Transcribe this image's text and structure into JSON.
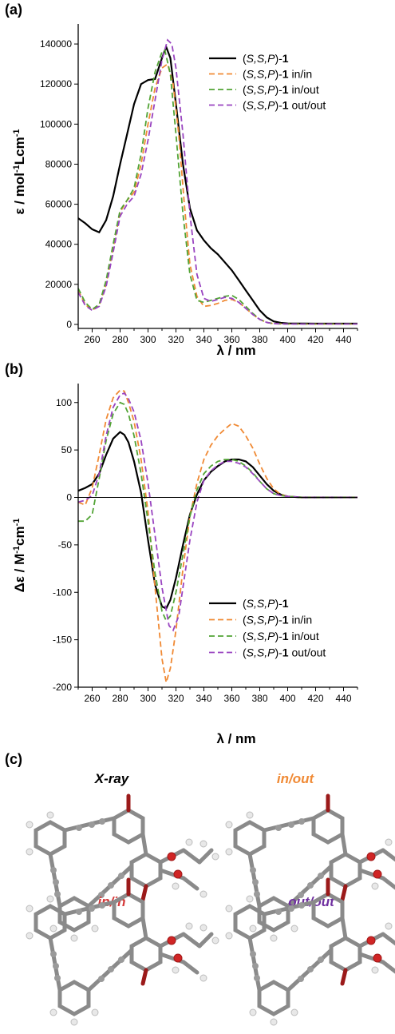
{
  "panels": {
    "a": "(a)",
    "b": "(b)",
    "c": "(c)"
  },
  "colors": {
    "exp": "#000000",
    "in_in": "#f08a35",
    "in_out": "#52a435",
    "out_out": "#9944c0",
    "xray_caption": "#000000",
    "in_out_caption": "#f08a35",
    "in_in_caption": "#d53a3a",
    "out_out_caption": "#7030a0"
  },
  "chart_data": [
    {
      "type": "line",
      "ylabel_symbol": "ε",
      "ylabel_unit": " / mol",
      "ylabel_sup1": "-1",
      "ylabel_mid": "Lcm",
      "ylabel_sup2": "-1",
      "xlabel": "λ / nm",
      "xlim": [
        250,
        450
      ],
      "ylim": [
        -2000,
        150000
      ],
      "xticks": [
        260,
        280,
        300,
        320,
        340,
        360,
        380,
        400,
        420,
        440
      ],
      "yticks": [
        0,
        20000,
        40000,
        60000,
        80000,
        100000,
        120000,
        140000
      ],
      "legend_position": "top-right",
      "series": [
        {
          "name_pre": "(",
          "name_italic": "S,S,P",
          "name_post": ")-",
          "name_bold": "1",
          "name_suffix": "",
          "style": "solid",
          "color_key": "exp",
          "x": [
            250,
            255,
            260,
            265,
            270,
            275,
            280,
            285,
            290,
            295,
            300,
            305,
            310,
            313,
            316,
            320,
            325,
            330,
            335,
            340,
            345,
            350,
            355,
            360,
            365,
            370,
            375,
            380,
            385,
            390,
            395,
            400,
            420,
            450
          ],
          "y": [
            53000,
            50500,
            47500,
            46000,
            52000,
            64000,
            80000,
            95000,
            110000,
            120000,
            122000,
            122500,
            133000,
            138500,
            133000,
            110000,
            80000,
            58000,
            47000,
            42000,
            38000,
            35000,
            31000,
            27000,
            22000,
            17000,
            12000,
            7000,
            3500,
            1500,
            800,
            500,
            400,
            400
          ]
        },
        {
          "name_pre": "(",
          "name_italic": "S,S,P",
          "name_post": ")-",
          "name_bold": "1",
          "name_suffix": " in/in",
          "style": "dashed",
          "color_key": "in_in",
          "x": [
            250,
            255,
            260,
            265,
            270,
            275,
            280,
            285,
            290,
            295,
            300,
            305,
            310,
            314,
            318,
            322,
            326,
            330,
            335,
            340,
            345,
            350,
            355,
            360,
            365,
            370,
            375,
            380,
            385,
            390,
            400,
            420,
            450
          ],
          "y": [
            17000,
            10000,
            7000,
            9500,
            20000,
            38000,
            56000,
            62000,
            66000,
            80000,
            100000,
            118000,
            128000,
            130000,
            120000,
            95000,
            60000,
            30000,
            14000,
            9000,
            9500,
            10500,
            12000,
            12500,
            11000,
            8000,
            5000,
            2500,
            1000,
            400,
            200,
            200,
            200
          ]
        },
        {
          "name_pre": "(",
          "name_italic": "S,S,P",
          "name_post": ")-",
          "name_bold": "1",
          "name_suffix": " in/out",
          "style": "dashed",
          "color_key": "in_out",
          "x": [
            250,
            255,
            260,
            265,
            270,
            275,
            280,
            285,
            290,
            295,
            300,
            305,
            310,
            312,
            316,
            320,
            325,
            330,
            335,
            340,
            345,
            350,
            355,
            360,
            365,
            370,
            375,
            380,
            385,
            390,
            400,
            420,
            450
          ],
          "y": [
            18000,
            11000,
            7500,
            10000,
            22000,
            40000,
            57000,
            62000,
            68000,
            85000,
            108000,
            126000,
            136000,
            137000,
            125000,
            95000,
            55000,
            25000,
            12000,
            11000,
            12000,
            13000,
            14000,
            14500,
            12500,
            9000,
            5500,
            2500,
            1000,
            400,
            200,
            200,
            200
          ]
        },
        {
          "name_pre": "(",
          "name_italic": "S,S,P",
          "name_post": ")-",
          "name_bold": "1",
          "name_suffix": " out/out",
          "style": "dashed",
          "color_key": "out_out",
          "x": [
            250,
            255,
            260,
            265,
            270,
            275,
            280,
            285,
            290,
            295,
            300,
            305,
            310,
            314,
            317,
            320,
            325,
            330,
            335,
            340,
            345,
            350,
            355,
            360,
            365,
            370,
            375,
            380,
            385,
            390,
            400,
            420,
            450
          ],
          "y": [
            16000,
            9500,
            7000,
            9000,
            19000,
            36000,
            54000,
            60000,
            64000,
            75000,
            92000,
            112000,
            132000,
            142000,
            140000,
            128000,
            95000,
            55000,
            25000,
            13000,
            11500,
            12500,
            13500,
            13000,
            11000,
            8000,
            5000,
            2500,
            1000,
            400,
            200,
            200,
            200
          ]
        }
      ]
    },
    {
      "type": "line",
      "ylabel_symbol": "Δε",
      "ylabel_unit": " / M",
      "ylabel_sup1": "-1",
      "ylabel_mid": "cm",
      "ylabel_sup2": "-1",
      "xlabel": "λ / nm",
      "xlim": [
        250,
        450
      ],
      "ylim": [
        -200,
        120
      ],
      "xticks": [
        260,
        280,
        300,
        320,
        340,
        360,
        380,
        400,
        420,
        440
      ],
      "yticks": [
        -200,
        -150,
        -100,
        -50,
        0,
        50,
        100
      ],
      "zero_line": true,
      "legend_position": "bottom-right",
      "series": [
        {
          "name_pre": "(",
          "name_italic": "S,S,P",
          "name_post": ")-",
          "name_bold": "1",
          "name_suffix": "",
          "style": "solid",
          "color_key": "exp",
          "x": [
            250,
            255,
            260,
            265,
            270,
            275,
            280,
            283,
            286,
            290,
            295,
            300,
            305,
            310,
            313,
            316,
            320,
            325,
            330,
            335,
            340,
            345,
            350,
            355,
            360,
            365,
            370,
            375,
            380,
            385,
            390,
            395,
            400,
            410,
            420,
            450
          ],
          "y": [
            7,
            10,
            14,
            25,
            45,
            62,
            69,
            66,
            58,
            38,
            5,
            -45,
            -92,
            -115,
            -117,
            -108,
            -85,
            -50,
            -18,
            3,
            18,
            27,
            33,
            38,
            40,
            40,
            38,
            32,
            23,
            14,
            7,
            3,
            1,
            0,
            0,
            0
          ]
        },
        {
          "name_pre": "(",
          "name_italic": "S,S,P",
          "name_post": ")-",
          "name_bold": "1",
          "name_suffix": " in/in",
          "style": "dashed",
          "color_key": "in_in",
          "x": [
            250,
            255,
            260,
            265,
            270,
            275,
            280,
            283,
            286,
            290,
            295,
            300,
            305,
            310,
            313,
            316,
            320,
            325,
            330,
            335,
            340,
            345,
            350,
            355,
            360,
            365,
            370,
            375,
            380,
            385,
            390,
            395,
            400,
            410,
            450
          ],
          "y": [
            -5,
            -8,
            10,
            45,
            82,
            105,
            113,
            112,
            100,
            80,
            40,
            -15,
            -95,
            -170,
            -195,
            -180,
            -140,
            -75,
            -20,
            15,
            40,
            55,
            65,
            72,
            78,
            75,
            65,
            52,
            35,
            20,
            9,
            3,
            1,
            0,
            0
          ]
        },
        {
          "name_pre": "(",
          "name_italic": "S,S,P",
          "name_post": ")-",
          "name_bold": "1",
          "name_suffix": " in/out",
          "style": "dashed",
          "color_key": "in_out",
          "x": [
            250,
            255,
            260,
            265,
            270,
            275,
            280,
            283,
            286,
            290,
            295,
            300,
            305,
            310,
            313,
            316,
            320,
            325,
            330,
            335,
            340,
            345,
            350,
            355,
            360,
            365,
            370,
            375,
            380,
            385,
            390,
            395,
            400,
            410,
            450
          ],
          "y": [
            -25,
            -25,
            -18,
            20,
            60,
            88,
            100,
            98,
            88,
            65,
            25,
            -25,
            -80,
            -120,
            -130,
            -125,
            -100,
            -60,
            -20,
            8,
            25,
            33,
            38,
            40,
            40,
            38,
            33,
            26,
            17,
            9,
            4,
            2,
            1,
            0,
            0
          ]
        },
        {
          "name_pre": "(",
          "name_italic": "S,S,P",
          "name_post": ")-",
          "name_bold": "1",
          "name_suffix": " out/out",
          "style": "dashed",
          "color_key": "out_out",
          "x": [
            250,
            255,
            260,
            265,
            270,
            275,
            280,
            283,
            286,
            290,
            295,
            300,
            305,
            310,
            315,
            318,
            322,
            326,
            330,
            335,
            340,
            345,
            350,
            355,
            360,
            365,
            370,
            375,
            380,
            385,
            390,
            395,
            400,
            410,
            450
          ],
          "y": [
            -5,
            -3,
            2,
            25,
            65,
            95,
            108,
            110,
            104,
            90,
            60,
            15,
            -40,
            -95,
            -135,
            -140,
            -125,
            -85,
            -45,
            -5,
            18,
            28,
            34,
            38,
            38,
            36,
            32,
            25,
            17,
            9,
            4,
            2,
            1,
            0,
            0
          ]
        }
      ]
    }
  ],
  "structures": {
    "xray": "X-ray",
    "in_out": "in/out",
    "in_in": "in/in",
    "out_out": "out/out"
  }
}
